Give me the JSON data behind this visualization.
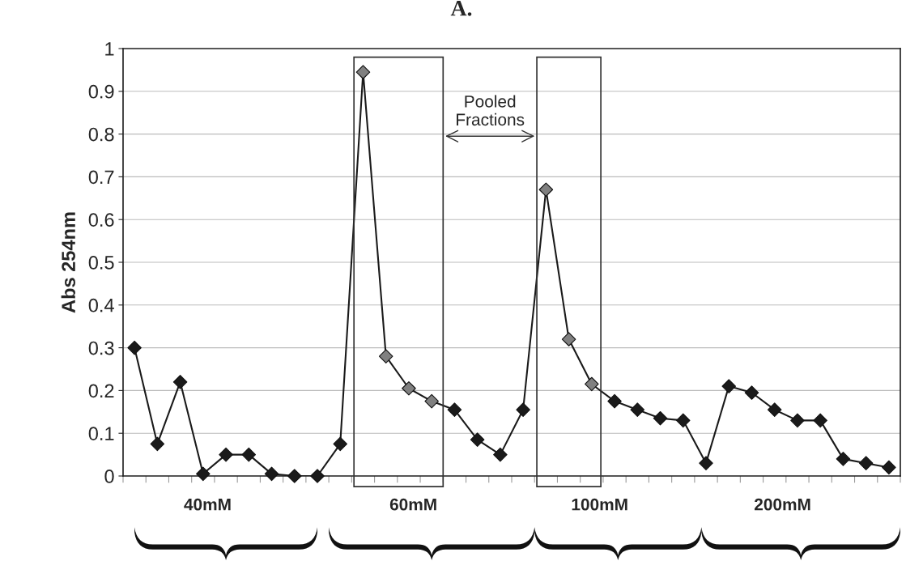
{
  "chart_data": {
    "type": "line",
    "title": "A.",
    "ylabel": "Abs 254nm",
    "categories": [
      null,
      null,
      null,
      null,
      null,
      null,
      null,
      null,
      null,
      null,
      null,
      null,
      null,
      null,
      null,
      null,
      null,
      null,
      null,
      null,
      null,
      null,
      null,
      null,
      null,
      null,
      null,
      null,
      null,
      null,
      null,
      null,
      null,
      null
    ],
    "series": [
      {
        "color": "#1a1a1a",
        "values": [
          0.3,
          0.075,
          0.22,
          0.005,
          0.05,
          0.05,
          0.005,
          0.0,
          0.0,
          0.075,
          0.945,
          0.28,
          0.205,
          0.175,
          0.155,
          0.085,
          0.05,
          0.155,
          0.67,
          0.32,
          0.215,
          0.175,
          0.155,
          0.135,
          0.13,
          0.03,
          0.21,
          0.195,
          0.155,
          0.13,
          0.13,
          0.04,
          0.03,
          0.02
        ],
        "colors": [
          "#1a1a1a",
          "#1a1a1a",
          "#1a1a1a",
          "#1a1a1a",
          "#1a1a1a",
          "#1a1a1a",
          "#1a1a1a",
          "#1a1a1a",
          "#1a1a1a",
          "#1a1a1a",
          "#808080",
          "#808080",
          "#808080",
          "#808080",
          "#1a1a1a",
          "#1a1a1a",
          "#1a1a1a",
          "#1a1a1a",
          "#808080",
          "#808080",
          "#808080",
          "#1a1a1a",
          "#1a1a1a",
          "#1a1a1a",
          "#1a1a1a",
          "#1a1a1a",
          "#1a1a1a",
          "#1a1a1a",
          "#1a1a1a",
          "#1a1a1a",
          "#1a1a1a",
          "#1a1a1a",
          "#1a1a1a",
          "#1a1a1a"
        ]
      }
    ],
    "ylim": [
      0,
      1
    ],
    "yticks": [
      0,
      0.1,
      0.2,
      0.3,
      0.4,
      0.5,
      0.6,
      0.7,
      0.8,
      0.9,
      1
    ],
    "grid": "y",
    "marker": "diamond",
    "line_style": "solid",
    "tick_labels": "y",
    "annotations": [
      "Pooled Fractions",
      "40mM",
      "60mM",
      "100mM",
      "200mM"
    ]
  }
}
